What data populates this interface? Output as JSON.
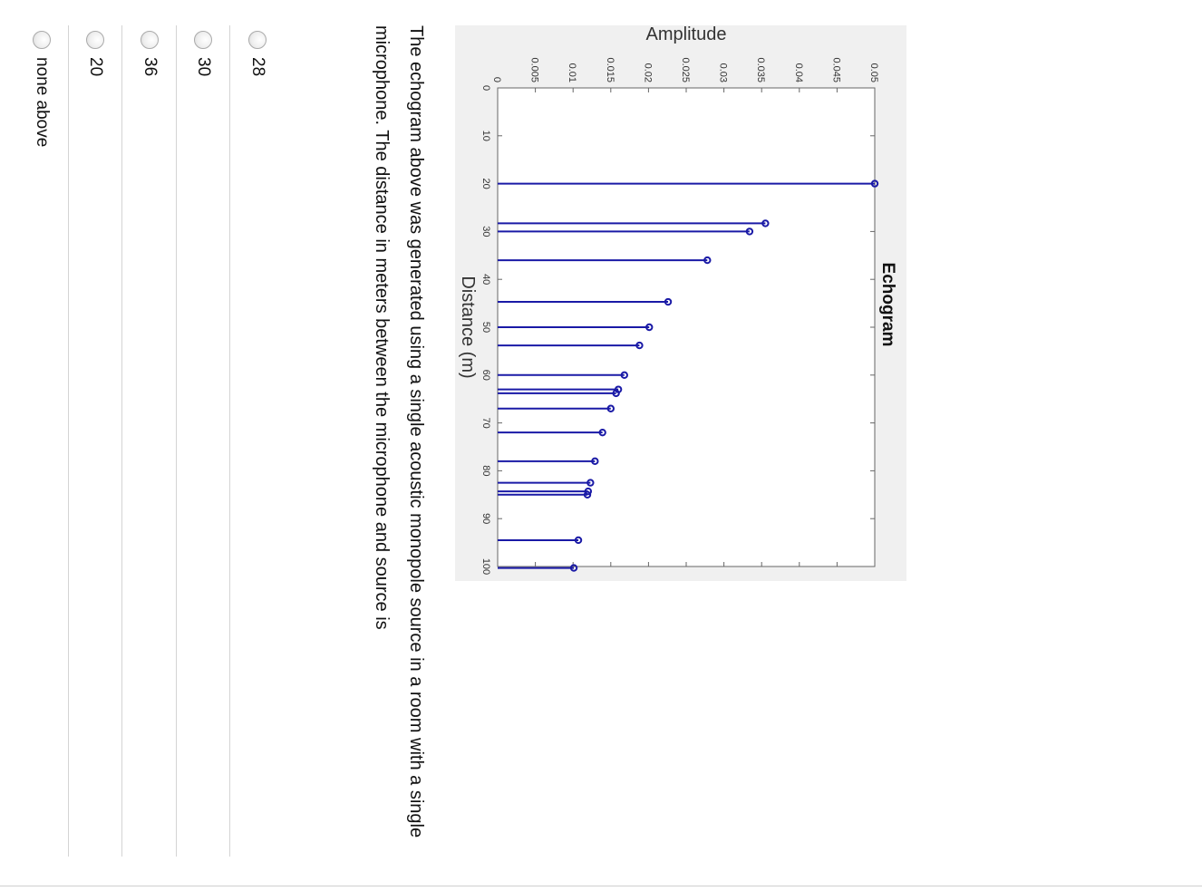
{
  "question": {
    "text": "The echogram above was generated using a single acoustic monopole source in a room with a single microphone.  The distance in meters between the microphone and source is"
  },
  "choices": [
    {
      "label": "28"
    },
    {
      "label": "30"
    },
    {
      "label": "36"
    },
    {
      "label": "20"
    },
    {
      "label": "none above"
    }
  ],
  "colors": {
    "stem": "#1a1aa6",
    "figure_background": "#f0f0f0",
    "axes_background": "#ffffff"
  },
  "chart_data": {
    "type": "stem",
    "title": "Echogram",
    "xlabel": "Distance (m)",
    "ylabel": "Amplitude",
    "xlim": [
      0,
      100
    ],
    "ylim": [
      0,
      0.05
    ],
    "x_ticks": [
      0,
      10,
      20,
      30,
      40,
      50,
      60,
      70,
      80,
      90,
      100
    ],
    "y_ticks": [
      "0",
      "0.005",
      "0.01",
      "0.015",
      "0.02",
      "0.025",
      "0.03",
      "0.035",
      "0.04",
      "0.045",
      "0.05"
    ],
    "grid": false,
    "points": [
      {
        "x": 20,
        "y": 0.05
      },
      {
        "x": 28.3,
        "y": 0.0355
      },
      {
        "x": 30,
        "y": 0.0334
      },
      {
        "x": 36,
        "y": 0.0278
      },
      {
        "x": 44.7,
        "y": 0.0226
      },
      {
        "x": 50,
        "y": 0.0201
      },
      {
        "x": 53.8,
        "y": 0.0188
      },
      {
        "x": 60,
        "y": 0.0168
      },
      {
        "x": 63,
        "y": 0.016
      },
      {
        "x": 63.8,
        "y": 0.0157
      },
      {
        "x": 67,
        "y": 0.015
      },
      {
        "x": 72,
        "y": 0.0139
      },
      {
        "x": 78,
        "y": 0.0129
      },
      {
        "x": 82.5,
        "y": 0.0123
      },
      {
        "x": 84.3,
        "y": 0.012
      },
      {
        "x": 85,
        "y": 0.0119
      },
      {
        "x": 94.5,
        "y": 0.0107
      },
      {
        "x": 100.3,
        "y": 0.0101
      }
    ]
  }
}
